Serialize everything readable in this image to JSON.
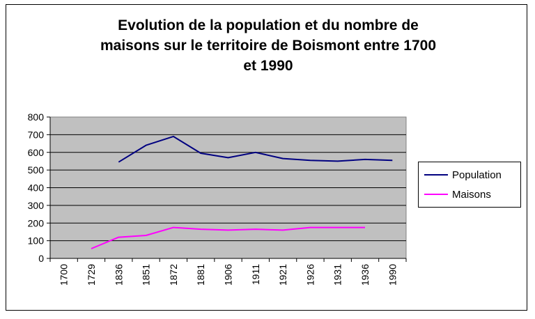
{
  "chart_data": {
    "type": "line",
    "title": "Evolution de la population et du nombre de maisons sur le territoire de Boismont entre 1700 et 1990",
    "title_lines": [
      "Evolution de la population et du nombre de",
      "maisons sur le territoire de Boismont entre 1700",
      "et 1990"
    ],
    "categories": [
      "1700",
      "1729",
      "1836",
      "1851",
      "1872",
      "1881",
      "1906",
      "1911",
      "1921",
      "1926",
      "1931",
      "1936",
      "1990"
    ],
    "series": [
      {
        "name": "Population",
        "color": "#000080",
        "values": [
          null,
          null,
          545,
          640,
          690,
          595,
          570,
          600,
          565,
          555,
          550,
          560,
          555
        ]
      },
      {
        "name": "Maisons",
        "color": "#ff00ff",
        "values": [
          null,
          55,
          120,
          130,
          175,
          165,
          160,
          165,
          160,
          175,
          175,
          175,
          null
        ]
      }
    ],
    "ylim": [
      0,
      800
    ],
    "yticks": [
      0,
      100,
      200,
      300,
      400,
      500,
      600,
      700,
      800
    ],
    "plot_background": "#c0c0c0",
    "grid": true,
    "legend_position": "right",
    "xlabel": "",
    "ylabel": ""
  }
}
